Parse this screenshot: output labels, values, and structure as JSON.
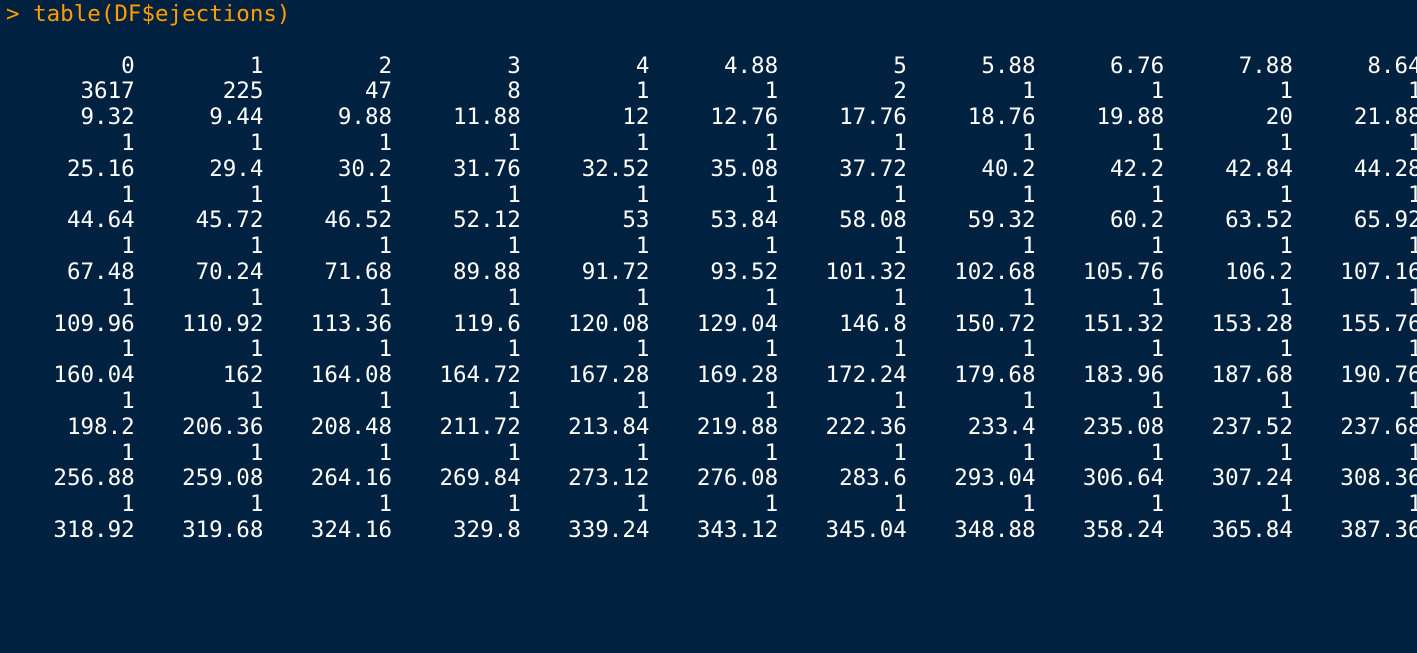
{
  "console": {
    "prompt": ">",
    "command": "table(DF$ejections)"
  },
  "table_rows": [
    {
      "values": [
        "0",
        "1",
        "2",
        "3",
        "4",
        "4.88",
        "5",
        "5.88",
        "6.76",
        "7.88",
        "8.64"
      ],
      "counts": [
        "3617",
        "225",
        "47",
        "8",
        "1",
        "1",
        "2",
        "1",
        "1",
        "1",
        "1"
      ]
    },
    {
      "values": [
        "9.32",
        "9.44",
        "9.88",
        "11.88",
        "12",
        "12.76",
        "17.76",
        "18.76",
        "19.88",
        "20",
        "21.88"
      ],
      "counts": [
        "1",
        "1",
        "1",
        "1",
        "1",
        "1",
        "1",
        "1",
        "1",
        "1",
        "1"
      ]
    },
    {
      "values": [
        "25.16",
        "29.4",
        "30.2",
        "31.76",
        "32.52",
        "35.08",
        "37.72",
        "40.2",
        "42.2",
        "42.84",
        "44.28"
      ],
      "counts": [
        "1",
        "1",
        "1",
        "1",
        "1",
        "1",
        "1",
        "1",
        "1",
        "1",
        "1"
      ]
    },
    {
      "values": [
        "44.64",
        "45.72",
        "46.52",
        "52.12",
        "53",
        "53.84",
        "58.08",
        "59.32",
        "60.2",
        "63.52",
        "65.92"
      ],
      "counts": [
        "1",
        "1",
        "1",
        "1",
        "1",
        "1",
        "1",
        "1",
        "1",
        "1",
        "1"
      ]
    },
    {
      "values": [
        "67.48",
        "70.24",
        "71.68",
        "89.88",
        "91.72",
        "93.52",
        "101.32",
        "102.68",
        "105.76",
        "106.2",
        "107.16"
      ],
      "counts": [
        "1",
        "1",
        "1",
        "1",
        "1",
        "1",
        "1",
        "1",
        "1",
        "1",
        "1"
      ]
    },
    {
      "values": [
        "109.96",
        "110.92",
        "113.36",
        "119.6",
        "120.08",
        "129.04",
        "146.8",
        "150.72",
        "151.32",
        "153.28",
        "155.76"
      ],
      "counts": [
        "1",
        "1",
        "1",
        "1",
        "1",
        "1",
        "1",
        "1",
        "1",
        "1",
        "1"
      ]
    },
    {
      "values": [
        "160.04",
        "162",
        "164.08",
        "164.72",
        "167.28",
        "169.28",
        "172.24",
        "179.68",
        "183.96",
        "187.68",
        "190.76"
      ],
      "counts": [
        "1",
        "1",
        "1",
        "1",
        "1",
        "1",
        "1",
        "1",
        "1",
        "1",
        "1"
      ]
    },
    {
      "values": [
        "198.2",
        "206.36",
        "208.48",
        "211.72",
        "213.84",
        "219.88",
        "222.36",
        "233.4",
        "235.08",
        "237.52",
        "237.68"
      ],
      "counts": [
        "1",
        "1",
        "1",
        "1",
        "1",
        "1",
        "1",
        "1",
        "1",
        "1",
        "1"
      ]
    },
    {
      "values": [
        "256.88",
        "259.08",
        "264.16",
        "269.84",
        "273.12",
        "276.08",
        "283.6",
        "293.04",
        "306.64",
        "307.24",
        "308.36"
      ],
      "counts": [
        "1",
        "1",
        "1",
        "1",
        "1",
        "1",
        "1",
        "1",
        "1",
        "1",
        "1"
      ]
    },
    {
      "values": [
        "318.92",
        "319.68",
        "324.16",
        "329.8",
        "339.24",
        "343.12",
        "345.04",
        "348.88",
        "358.24",
        "365.84",
        "387.36"
      ],
      "counts": []
    }
  ],
  "colors": {
    "background": "#002240",
    "prompt_text": "#ff9d00",
    "output_text": "#ffffff"
  }
}
